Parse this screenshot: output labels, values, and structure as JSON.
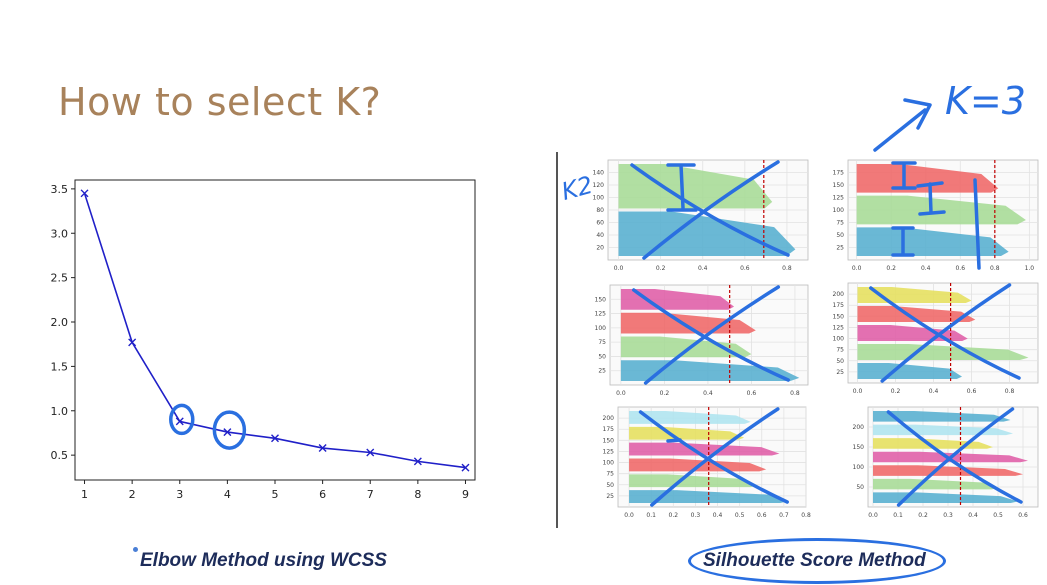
{
  "slide": {
    "title": "How to select K?",
    "left_caption": "Elbow Method using WCSS",
    "right_caption": "Silhouette Score Method"
  },
  "annotations": {
    "k_label": "K=3",
    "k2_label": "K2"
  },
  "colors": {
    "title": "#a8825b",
    "line": "#2020c8",
    "pen": "#2a6fe0",
    "caption": "#1d2c5a",
    "sil_blue": "#5ab0d0",
    "sil_green": "#a8dc98",
    "sil_red": "#f06a6a",
    "sil_pink": "#e060a8",
    "sil_yellow": "#e6e060",
    "sil_lightblue": "#b0e4f0",
    "threshold": "#c00000"
  },
  "chart_data": {
    "type": "line",
    "x": [
      1,
      2,
      3,
      4,
      5,
      6,
      7,
      8,
      9
    ],
    "y": [
      3.45,
      1.77,
      0.88,
      0.76,
      0.69,
      0.58,
      0.53,
      0.43,
      0.36
    ],
    "xlim": [
      0.8,
      9.2
    ],
    "ylim": [
      0.22,
      3.6
    ],
    "xticks": [
      "1",
      "2",
      "3",
      "4",
      "5",
      "6",
      "7",
      "8",
      "9"
    ],
    "yticks": [
      "0.5",
      "1.0",
      "1.5",
      "2.0",
      "2.5",
      "3.0",
      "3.5"
    ],
    "ytick_values": [
      0.5,
      1.0,
      1.5,
      2.0,
      2.5,
      3.0,
      3.5
    ],
    "marker": "x",
    "grid": false,
    "circled_points": [
      3,
      4
    ]
  },
  "silhouette_panels": [
    {
      "name": "k2",
      "yticks": [
        "20",
        "40",
        "60",
        "80",
        "100",
        "120",
        "140"
      ],
      "xticks": [
        "0.0",
        "0.2",
        "0.4",
        "0.6",
        "0.8"
      ],
      "xlim": [
        -0.05,
        0.9
      ],
      "threshold": 0.69,
      "clusters": [
        {
          "color": "sil_blue",
          "max": 0.84
        },
        {
          "color": "sil_green",
          "max": 0.73
        }
      ],
      "crossed": true
    },
    {
      "name": "k3",
      "yticks": [
        "25",
        "50",
        "75",
        "100",
        "125",
        "150",
        "175"
      ],
      "xticks": [
        "0.0",
        "0.2",
        "0.4",
        "0.6",
        "0.8",
        "1.0"
      ],
      "xlim": [
        -0.05,
        1.05
      ],
      "threshold": 0.8,
      "clusters": [
        {
          "color": "sil_blue",
          "max": 0.88
        },
        {
          "color": "sil_green",
          "max": 0.98
        },
        {
          "color": "sil_red",
          "max": 0.82
        }
      ],
      "crossed": false
    },
    {
      "name": "k4",
      "yticks": [
        "25",
        "50",
        "75",
        "100",
        "125",
        "150"
      ],
      "xticks": [
        "0.0",
        "0.2",
        "0.4",
        "0.6",
        "0.8"
      ],
      "xlim": [
        -0.05,
        0.86
      ],
      "threshold": 0.5,
      "clusters": [
        {
          "color": "sil_blue",
          "max": 0.82
        },
        {
          "color": "sil_green",
          "max": 0.6
        },
        {
          "color": "sil_red",
          "max": 0.62
        },
        {
          "color": "sil_pink",
          "max": 0.52
        }
      ],
      "crossed": true
    },
    {
      "name": "k5",
      "yticks": [
        "25",
        "50",
        "75",
        "100",
        "125",
        "150",
        "175",
        "200"
      ],
      "xticks": [
        "0.0",
        "0.2",
        "0.4",
        "0.6",
        "0.8"
      ],
      "xlim": [
        -0.05,
        0.95
      ],
      "threshold": 0.49,
      "clusters": [
        {
          "color": "sil_blue",
          "max": 0.55
        },
        {
          "color": "sil_green",
          "max": 0.9
        },
        {
          "color": "sil_pink",
          "max": 0.58
        },
        {
          "color": "sil_red",
          "max": 0.62
        },
        {
          "color": "sil_yellow",
          "max": 0.6
        }
      ],
      "crossed": true
    },
    {
      "name": "k6",
      "yticks": [
        "25",
        "50",
        "75",
        "100",
        "125",
        "150",
        "175",
        "200"
      ],
      "xticks": [
        "0.0",
        "0.1",
        "0.2",
        "0.3",
        "0.4",
        "0.5",
        "0.6",
        "0.7",
        "0.8"
      ],
      "xlim": [
        -0.05,
        0.8
      ],
      "threshold": 0.36,
      "clusters": [
        {
          "color": "sil_blue",
          "max": 0.72
        },
        {
          "color": "sil_green",
          "max": 0.58
        },
        {
          "color": "sil_red",
          "max": 0.62
        },
        {
          "color": "sil_pink",
          "max": 0.68
        },
        {
          "color": "sil_yellow",
          "max": 0.52
        },
        {
          "color": "sil_lightblue",
          "max": 0.55
        }
      ],
      "crossed": true
    },
    {
      "name": "k7",
      "yticks": [
        "50",
        "100",
        "150",
        "200"
      ],
      "xticks": [
        "0.0",
        "0.1",
        "0.2",
        "0.3",
        "0.4",
        "0.5",
        "0.6"
      ],
      "xlim": [
        -0.02,
        0.66
      ],
      "threshold": 0.35,
      "clusters": [
        {
          "color": "sil_blue",
          "max": 0.58
        },
        {
          "color": "sil_green",
          "max": 0.5
        },
        {
          "color": "sil_red",
          "max": 0.6
        },
        {
          "color": "sil_pink",
          "max": 0.62
        },
        {
          "color": "sil_yellow",
          "max": 0.48
        },
        {
          "color": "sil_lightblue",
          "max": 0.56
        },
        {
          "color": "sil_blue",
          "max": 0.55
        }
      ],
      "crossed": true
    }
  ]
}
